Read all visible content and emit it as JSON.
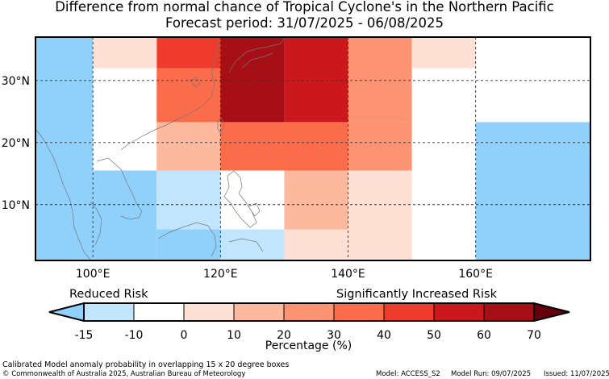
{
  "title": {
    "line1": "Difference from normal chance of Tropical Cyclone's in the Northern Pacific",
    "line2": "Forecast period: 31/07/2025 - 06/08/2025"
  },
  "map": {
    "lon_range": [
      91,
      178
    ],
    "lat_range": [
      1,
      37
    ],
    "x_ticks": [
      {
        "value": 100,
        "label": "100°E"
      },
      {
        "value": 120,
        "label": "120°E"
      },
      {
        "value": 140,
        "label": "140°E"
      },
      {
        "value": 160,
        "label": "160°E"
      }
    ],
    "y_ticks": [
      {
        "value": 10,
        "label": "10°N"
      },
      {
        "value": 20,
        "label": "20°N"
      },
      {
        "value": 30,
        "label": "30°N"
      }
    ],
    "cells": [
      {
        "lon0": 91,
        "lon1": 100,
        "lat0": 1,
        "lat1": 37,
        "color": "#8fd1fb"
      },
      {
        "lon0": 100,
        "lon1": 110,
        "lat0": 1,
        "lat1": 15.5,
        "color": "#8fd1fb"
      },
      {
        "lon0": 110,
        "lon1": 130,
        "lat0": 1,
        "lat1": 6,
        "color": "#8fd1fb"
      },
      {
        "lon0": 120,
        "lon1": 130,
        "lat0": 1,
        "lat1": 6,
        "color": "#c0e5fd"
      },
      {
        "lon0": 110,
        "lon1": 120,
        "lat0": 6,
        "lat1": 15.5,
        "color": "#c0e5fd"
      },
      {
        "lon0": 130,
        "lon1": 150,
        "lat0": 1,
        "lat1": 6,
        "color": "#fee0d4"
      },
      {
        "lon0": 130,
        "lon1": 140,
        "lat0": 6,
        "lat1": 15.5,
        "color": "#fdb99d"
      },
      {
        "lon0": 140,
        "lon1": 150,
        "lat0": 6,
        "lat1": 15.5,
        "color": "#fee0d4"
      },
      {
        "lon0": 110,
        "lon1": 120,
        "lat0": 15.5,
        "lat1": 23.3,
        "color": "#fdb99d"
      },
      {
        "lon0": 120,
        "lon1": 140,
        "lat0": 15.5,
        "lat1": 23.3,
        "color": "#fb6c4b"
      },
      {
        "lon0": 140,
        "lon1": 150,
        "lat0": 15.5,
        "lat1": 23.3,
        "color": "#fc9373"
      },
      {
        "lon0": 110,
        "lon1": 120,
        "lat0": 23.3,
        "lat1": 32,
        "color": "#fb6c4b"
      },
      {
        "lon0": 120,
        "lon1": 130,
        "lat0": 23.3,
        "lat1": 37,
        "color": "#a50f15"
      },
      {
        "lon0": 130,
        "lon1": 140,
        "lat0": 23.3,
        "lat1": 37,
        "color": "#cb181d"
      },
      {
        "lon0": 140,
        "lon1": 150,
        "lat0": 23.3,
        "lat1": 37,
        "color": "#fc9373"
      },
      {
        "lon0": 110,
        "lon1": 120,
        "lat0": 32,
        "lat1": 37,
        "color": "#ef3b2c"
      },
      {
        "lon0": 100,
        "lon1": 110,
        "lat0": 32,
        "lat1": 37,
        "color": "#fee0d4"
      },
      {
        "lon0": 150,
        "lon1": 160,
        "lat0": 32,
        "lat1": 37,
        "color": "#fee0d4"
      },
      {
        "lon0": 160,
        "lon1": 178,
        "lat0": 1,
        "lat1": 23.3,
        "color": "#8fd1fb"
      }
    ]
  },
  "legend": {
    "reduced_label": "Reduced Risk",
    "increased_label": "Significantly Increased Risk",
    "title": "Percentage (%)",
    "ticks": [
      "-15",
      "-10",
      "0",
      "10",
      "20",
      "30",
      "40",
      "50",
      "60",
      "70"
    ],
    "colors": [
      "#c0e5fd",
      "#ffffff",
      "#fee0d4",
      "#fdb99d",
      "#fc9373",
      "#fb6c4b",
      "#ef3b2c",
      "#cb181d",
      "#a50f15"
    ],
    "under_color": "#8fd1fb",
    "over_color": "#67000d"
  },
  "footer": {
    "description": "Calibrated Model anomaly probability in overlapping 15 x 20 degree boxes",
    "copyright": "© Commonwealth of Australia 2025, Australian Bureau of Meteorology",
    "model": "Model: ACCESS_S2",
    "model_run": "Model Run: 09/07/2025",
    "issued": "Issued: 11/07/2025"
  }
}
